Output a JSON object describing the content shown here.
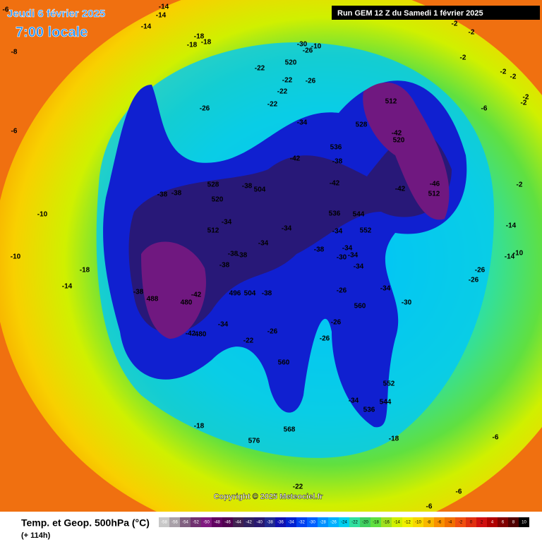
{
  "header": {
    "date": "Jeudi 6 février 2025",
    "time": "7:00 locale",
    "run": "Run GEM 12 Z du Samedi 1 février 2025"
  },
  "footer": {
    "title": "Temp. et Geop. 500hPa (°C)",
    "lead": "(+ 114h)",
    "copyright": "Copyright © 2025 Meteociel.fr"
  },
  "legend": {
    "values": [
      -58,
      -56,
      -54,
      -52,
      -50,
      -48,
      -46,
      -44,
      -42,
      -40,
      -38,
      -36,
      -34,
      -32,
      -30,
      -28,
      -26,
      -24,
      -22,
      -20,
      -18,
      -16,
      -14,
      -12,
      -10,
      -8,
      -6,
      -4,
      -2,
      0,
      2,
      4,
      6,
      8,
      10
    ],
    "colors": [
      "#c8c8c8",
      "#a8a0a8",
      "#806080",
      "#703070",
      "#801880",
      "#600060",
      "#500050",
      "#402050",
      "#302060",
      "#281870",
      "#202890",
      "#1010b0",
      "#0020d0",
      "#0040f0",
      "#0060ff",
      "#0090ff",
      "#00b0ff",
      "#00d0f0",
      "#30e0a0",
      "#40d060",
      "#60e040",
      "#a0e020",
      "#d0f000",
      "#f0f000",
      "#f8d800",
      "#f8b800",
      "#f89000",
      "#f07000",
      "#f05010",
      "#e03010",
      "#d01010",
      "#b00000",
      "#800000",
      "#500000",
      "#000000"
    ]
  },
  "map": {
    "labels": [
      "-14",
      "-14",
      "-14",
      "-6",
      "-6",
      "-8",
      "-10",
      "-10",
      "-14",
      "-18",
      "-18",
      "-18",
      "-18",
      "-22",
      "-22",
      "-22",
      "-22",
      "-26",
      "-26",
      "-30",
      "-26",
      "-10",
      "520",
      "-34",
      "528",
      "536",
      "-38",
      "-42",
      "-42",
      "-42",
      "520",
      "512",
      "-42",
      "-46",
      "512",
      "-38",
      "-38",
      "528",
      "520",
      "-38",
      "504",
      "512",
      "-34",
      "-34",
      "-34",
      "536",
      "544",
      "-34",
      "552",
      "-38",
      "-34",
      "-34",
      "-30",
      "-34",
      "-38",
      "-38",
      "-38",
      "488",
      "480",
      "-42",
      "-38",
      "496",
      "504",
      "-38",
      "-34",
      "-30",
      "-26",
      "560",
      "-26",
      "-26",
      "-26",
      "-22",
      "-34",
      "-42",
      "480",
      "560",
      "552",
      "-34",
      "544",
      "536",
      "-18",
      "576",
      "568",
      "-18",
      "-22",
      "-6",
      "-6",
      "-6",
      "-10",
      "-14",
      "-14",
      "-26",
      "-26",
      "-2",
      "-2",
      "-2",
      "-2",
      "-2",
      "-2",
      "-6",
      "-2",
      "-2"
    ]
  }
}
